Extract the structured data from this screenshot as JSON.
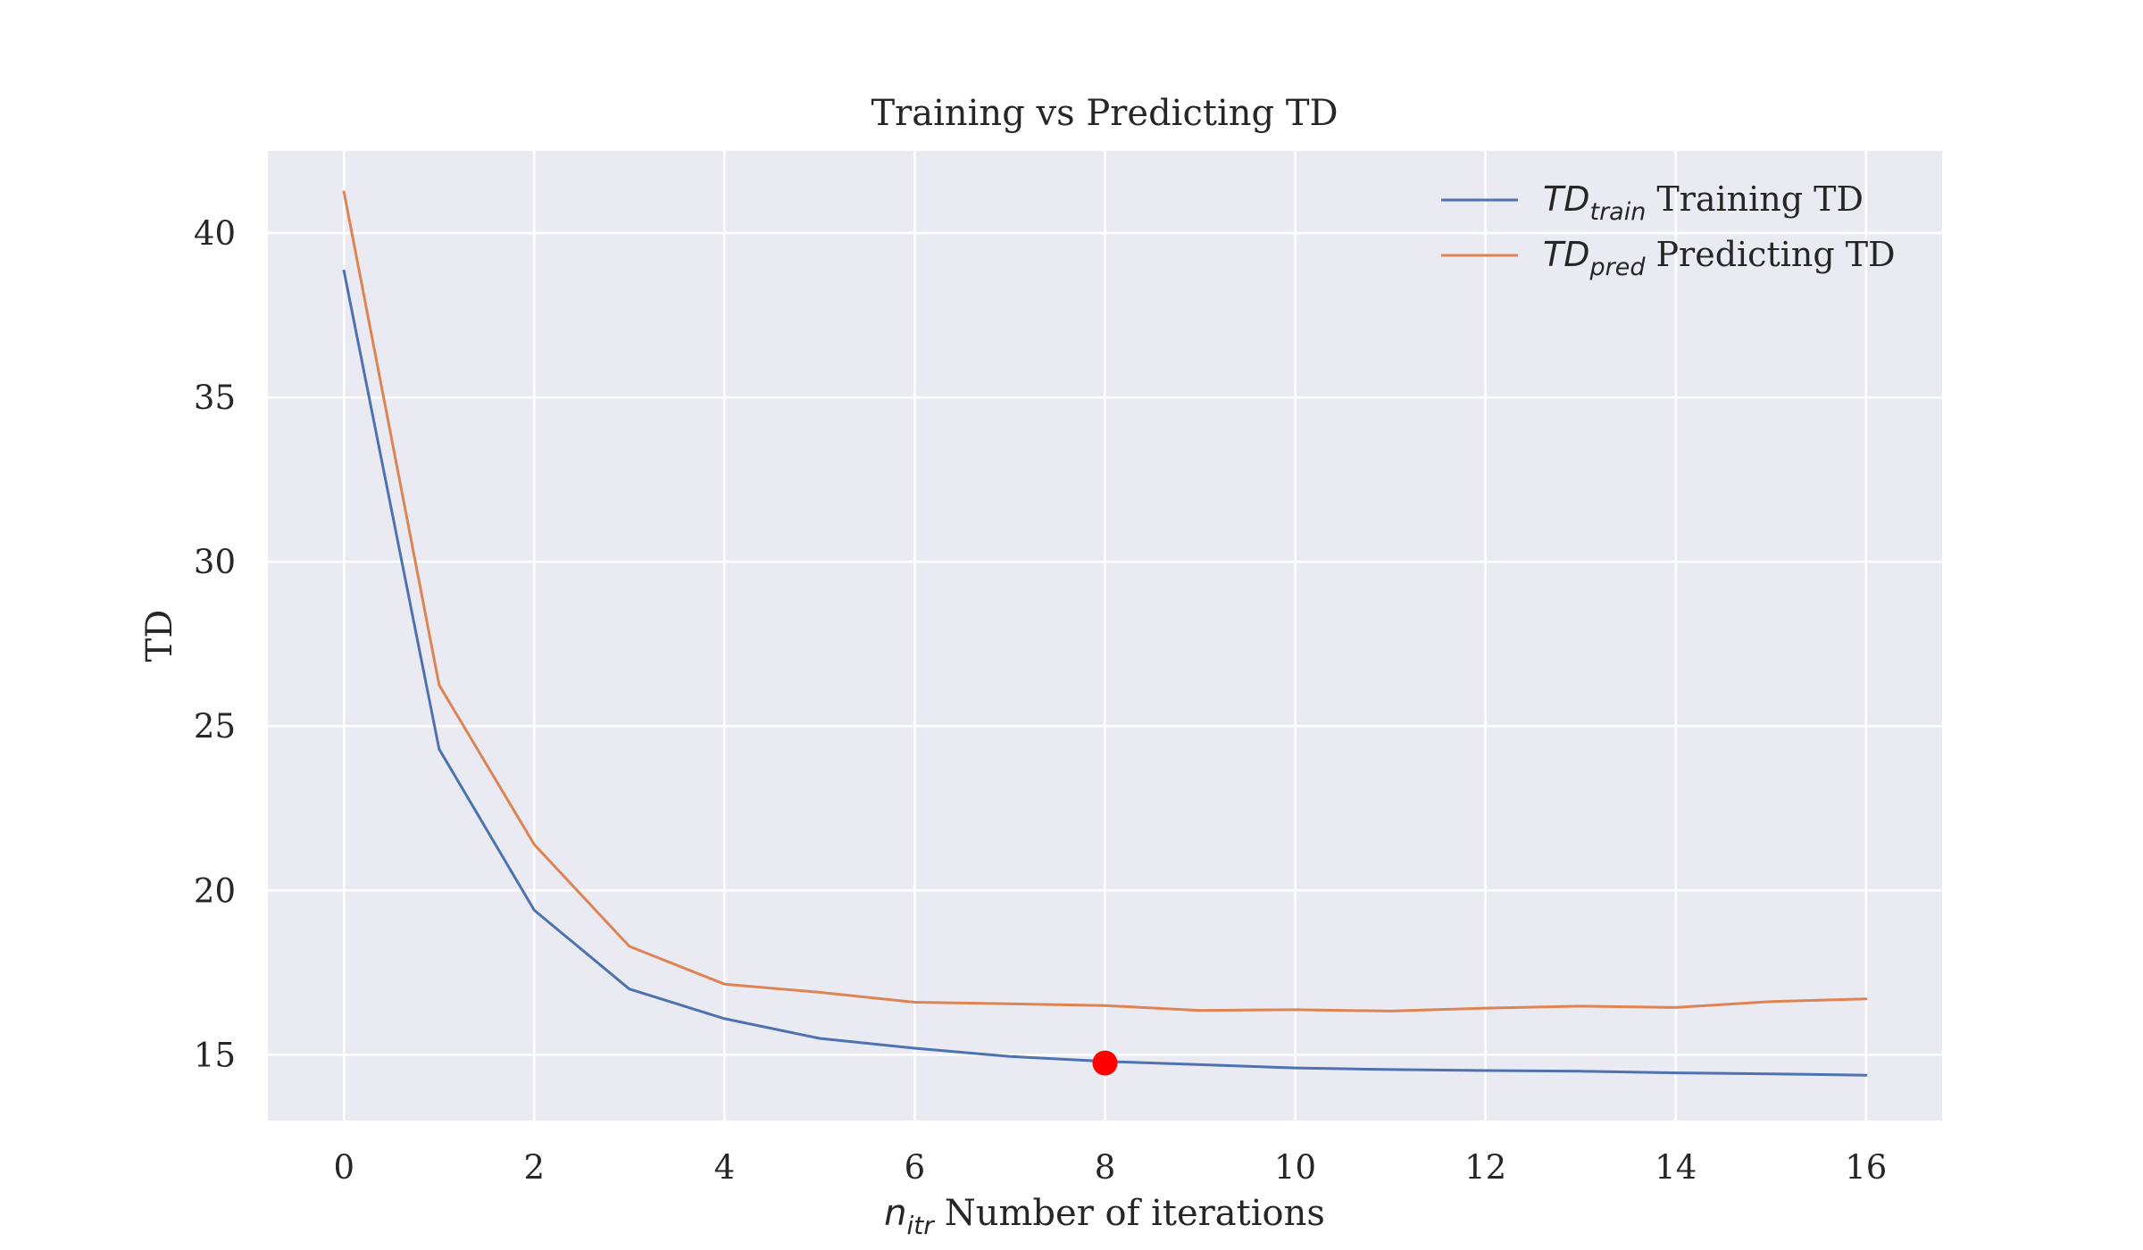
{
  "chart_data": {
    "type": "line",
    "title": "Training vs Predicting TD",
    "xlabel": {
      "symbol": "n",
      "subscript": "itr",
      "text": "Number of iterations"
    },
    "ylabel": "TD",
    "xlim": [
      -0.8,
      16.8
    ],
    "ylim": [
      13.0,
      42.5
    ],
    "xticks": [
      0,
      2,
      4,
      6,
      8,
      10,
      12,
      14,
      16
    ],
    "yticks": [
      15,
      20,
      25,
      30,
      35,
      40
    ],
    "grid": true,
    "legend_position": "top-right",
    "x": [
      0,
      1,
      2,
      3,
      4,
      5,
      6,
      7,
      8,
      9,
      10,
      11,
      12,
      13,
      14,
      15,
      16
    ],
    "series": [
      {
        "name": "Training TD",
        "symbol": "TD",
        "subscript": "train",
        "color": "#4c72b0",
        "values": [
          38.85,
          24.3,
          19.4,
          17.0,
          16.1,
          15.5,
          15.2,
          14.95,
          14.8,
          14.7,
          14.6,
          14.55,
          14.52,
          14.5,
          14.45,
          14.42,
          14.38
        ]
      },
      {
        "name": "Predicting TD",
        "symbol": "TD",
        "subscript": "pred",
        "color": "#dd8452",
        "values": [
          41.25,
          26.25,
          21.4,
          18.3,
          17.15,
          16.9,
          16.6,
          16.55,
          16.5,
          16.35,
          16.37,
          16.33,
          16.42,
          16.48,
          16.44,
          16.62,
          16.7
        ]
      }
    ],
    "highlight_point": {
      "x": 8,
      "y": 14.75,
      "color": "#ff0000"
    },
    "colors": {
      "plot_background": "#eaeaf2",
      "grid": "#ffffff",
      "text": "#262626"
    }
  }
}
